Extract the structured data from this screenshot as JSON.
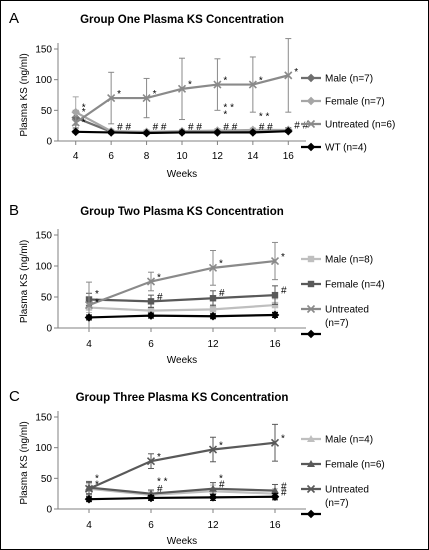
{
  "chart_data": [
    {
      "type": "line",
      "panel_label": "A",
      "title": "Group One Plasma KS Concentration",
      "xlabel": "Weeks",
      "ylabel": "Plasma KS (ng/ml)",
      "x": [
        4,
        6,
        8,
        10,
        12,
        14,
        16
      ],
      "ylim": [
        0,
        150
      ],
      "yticks": [
        0,
        50,
        100,
        150
      ],
      "legend_position": "right",
      "series": [
        {
          "name": "Male (n=7)",
          "color": "#6e6e6e",
          "marker": "diamond",
          "values": [
            38,
            15,
            14,
            15,
            15,
            16,
            18
          ],
          "err": [
            12,
            3,
            3,
            3,
            3,
            3,
            4
          ]
        },
        {
          "name": "Female (n=7)",
          "color": "#a6a6a6",
          "marker": "diamond",
          "values": [
            47,
            16,
            15,
            16,
            17,
            18,
            18
          ],
          "err": [
            25,
            3,
            3,
            3,
            3,
            3,
            3
          ]
        },
        {
          "name": "Untreated (n=6)",
          "color": "#8a8a8a",
          "marker": "x",
          "values": [
            30,
            70,
            70,
            85,
            92,
            92,
            107
          ],
          "err": [
            10,
            42,
            32,
            50,
            42,
            45,
            60
          ]
        },
        {
          "name": "WT (n=4)",
          "color": "#000000",
          "marker": "diamond",
          "values": [
            15,
            14,
            13,
            14,
            14,
            14,
            16
          ],
          "err": [
            2,
            2,
            2,
            2,
            2,
            2,
            2
          ]
        }
      ],
      "annotations": [
        {
          "x": 4,
          "y": 50,
          "text": "*"
        },
        {
          "x": 4,
          "y": 42,
          "text": "*"
        },
        {
          "x": 4,
          "y": 25,
          "text": "*"
        },
        {
          "x": 6,
          "y": 72,
          "text": "*"
        },
        {
          "x": 6,
          "y": 18,
          "text": "# #"
        },
        {
          "x": 8,
          "y": 72,
          "text": "*"
        },
        {
          "x": 8,
          "y": 18,
          "text": "# #"
        },
        {
          "x": 10,
          "y": 87,
          "text": "*"
        },
        {
          "x": 10,
          "y": 18,
          "text": "# #"
        },
        {
          "x": 12,
          "y": 94,
          "text": "*"
        },
        {
          "x": 12,
          "y": 50,
          "text": "* *"
        },
        {
          "x": 12,
          "y": 38,
          "text": "*"
        },
        {
          "x": 12,
          "y": 18,
          "text": "# #"
        },
        {
          "x": 14,
          "y": 94,
          "text": "*"
        },
        {
          "x": 14,
          "y": 35,
          "text": "* *"
        },
        {
          "x": 14,
          "y": 18,
          "text": "# #"
        },
        {
          "x": 16,
          "y": 108,
          "text": "*"
        },
        {
          "x": 16,
          "y": 20,
          "text": "# #"
        }
      ]
    },
    {
      "type": "line",
      "panel_label": "B",
      "title": "Group Two Plasma KS Concentration",
      "xlabel": "Weeks",
      "ylabel": "Plasma KS (ng/ml)",
      "x": [
        4,
        6,
        12,
        16
      ],
      "ylim": [
        0,
        150
      ],
      "yticks": [
        0,
        50,
        100,
        150
      ],
      "legend_position": "right",
      "series": [
        {
          "name": "Male (n=8)",
          "color": "#bfbfbf",
          "marker": "square",
          "values": [
            33,
            28,
            30,
            37
          ],
          "err": [
            8,
            6,
            8,
            10
          ]
        },
        {
          "name": "Female (n=4)",
          "color": "#595959",
          "marker": "square",
          "values": [
            46,
            43,
            48,
            53
          ],
          "err": [
            10,
            10,
            12,
            15
          ]
        },
        {
          "name": "Untreated (n=7)",
          "color": "#8a8a8a",
          "marker": "x",
          "values": [
            37,
            75,
            97,
            108
          ],
          "err": [
            37,
            15,
            28,
            30
          ]
        },
        {
          "name": "",
          "color": "#000000",
          "marker": "diamond",
          "values": [
            17,
            20,
            19,
            21
          ],
          "err": [
            4,
            4,
            4,
            4
          ]
        }
      ],
      "annotations": [
        {
          "x": 4,
          "y": 50,
          "text": "*"
        },
        {
          "x": 4,
          "y": 36,
          "text": "*"
        },
        {
          "x": 6,
          "y": 77,
          "text": "*"
        },
        {
          "x": 6,
          "y": 45,
          "text": "#"
        },
        {
          "x": 12,
          "y": 99,
          "text": "*"
        },
        {
          "x": 12,
          "y": 52,
          "text": "#"
        },
        {
          "x": 16,
          "y": 110,
          "text": "*"
        },
        {
          "x": 16,
          "y": 56,
          "text": "#"
        }
      ]
    },
    {
      "type": "line",
      "panel_label": "C",
      "title": "Group Three Plasma KS Concentration",
      "xlabel": "Weeks",
      "ylabel": "Plasma KS (ng/ml)",
      "x": [
        4,
        6,
        12,
        16
      ],
      "ylim": [
        0,
        150
      ],
      "yticks": [
        0,
        50,
        100,
        150
      ],
      "legend_position": "right",
      "series": [
        {
          "name": "Male (n=4)",
          "color": "#bfbfbf",
          "marker": "triangle",
          "values": [
            33,
            23,
            29,
            25
          ],
          "err": [
            8,
            6,
            10,
            8
          ]
        },
        {
          "name": "Female (n=6)",
          "color": "#595959",
          "marker": "triangle",
          "values": [
            35,
            25,
            33,
            30
          ],
          "err": [
            10,
            6,
            10,
            10
          ]
        },
        {
          "name": "Untreated (n=7)",
          "color": "#595959",
          "marker": "x",
          "values": [
            33,
            78,
            97,
            108
          ],
          "err": [
            10,
            12,
            20,
            30
          ]
        },
        {
          "name": "",
          "color": "#000000",
          "marker": "diamond",
          "values": [
            16,
            18,
            19,
            20
          ],
          "err": [
            4,
            4,
            5,
            5
          ]
        }
      ],
      "annotations": [
        {
          "x": 4,
          "y": 45,
          "text": "*"
        },
        {
          "x": 4,
          "y": 35,
          "text": "*"
        },
        {
          "x": 6,
          "y": 80,
          "text": "*"
        },
        {
          "x": 6,
          "y": 40,
          "text": "* *"
        },
        {
          "x": 6,
          "y": 28,
          "text": "#"
        },
        {
          "x": 12,
          "y": 99,
          "text": "*"
        },
        {
          "x": 12,
          "y": 45,
          "text": "*"
        },
        {
          "x": 12,
          "y": 35,
          "text": "#"
        },
        {
          "x": 16,
          "y": 110,
          "text": "*"
        },
        {
          "x": 16,
          "y": 32,
          "text": "#"
        },
        {
          "x": 16,
          "y": 22,
          "text": "#"
        }
      ]
    }
  ]
}
